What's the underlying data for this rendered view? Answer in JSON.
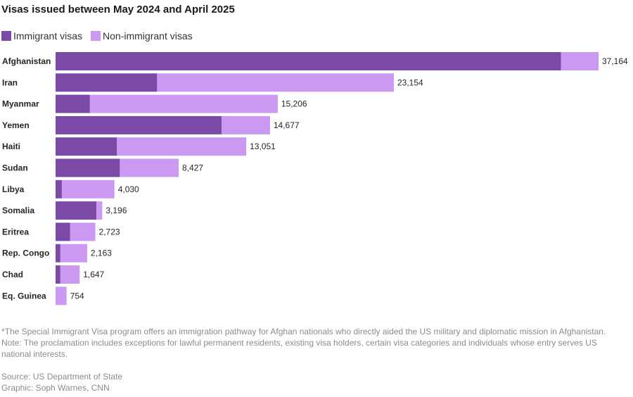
{
  "title": "Visas issued between May 2024 and April 2025",
  "colors": {
    "immigrant": "#7b4aa6",
    "non_immigrant": "#cc99f2"
  },
  "chart_data": {
    "type": "bar",
    "orientation": "horizontal",
    "stacked": true,
    "categories": [
      "Afghanistan",
      "Iran",
      "Myanmar",
      "Yemen",
      "Haiti",
      "Sudan",
      "Libya",
      "Somalia",
      "Eritrea",
      "Rep. Congo",
      "Chad",
      "Eq. Guinea"
    ],
    "series": [
      {
        "name": "Immigrant visas",
        "values": [
          34600,
          6950,
          2350,
          11370,
          4200,
          4400,
          430,
          2800,
          1000,
          330,
          330,
          0
        ]
      },
      {
        "name": "Non-immigrant visas",
        "values": [
          2564,
          16204,
          12856,
          3307,
          8851,
          4027,
          3600,
          396,
          1723,
          1833,
          1317,
          754
        ]
      }
    ],
    "totals": [
      37164,
      23154,
      15206,
      14677,
      13051,
      8427,
      4030,
      3196,
      2723,
      2163,
      1647,
      754
    ],
    "total_labels": [
      "37,164",
      "23,154",
      "15,206",
      "14,677",
      "13,051",
      "8,427",
      "4,030",
      "3,196",
      "2,723",
      "2,163",
      "1,647",
      "754"
    ],
    "xlim": [
      0,
      37164
    ],
    "legend_position": "top-left",
    "grid": false
  },
  "footnote": {
    "line1": "*The Special Immigrant Visa program offers an immigration pathway for Afghan nationals who directly aided the US military and diplomatic mission in Afghanistan.",
    "line2": "Note: The proclamation includes exceptions for lawful permanent residents, existing visa holders, certain visa categories and individuals whose entry serves US national interests."
  },
  "source": {
    "line1": "Source: US Department of State",
    "line2": "Graphic: Soph Warnes, CNN"
  }
}
